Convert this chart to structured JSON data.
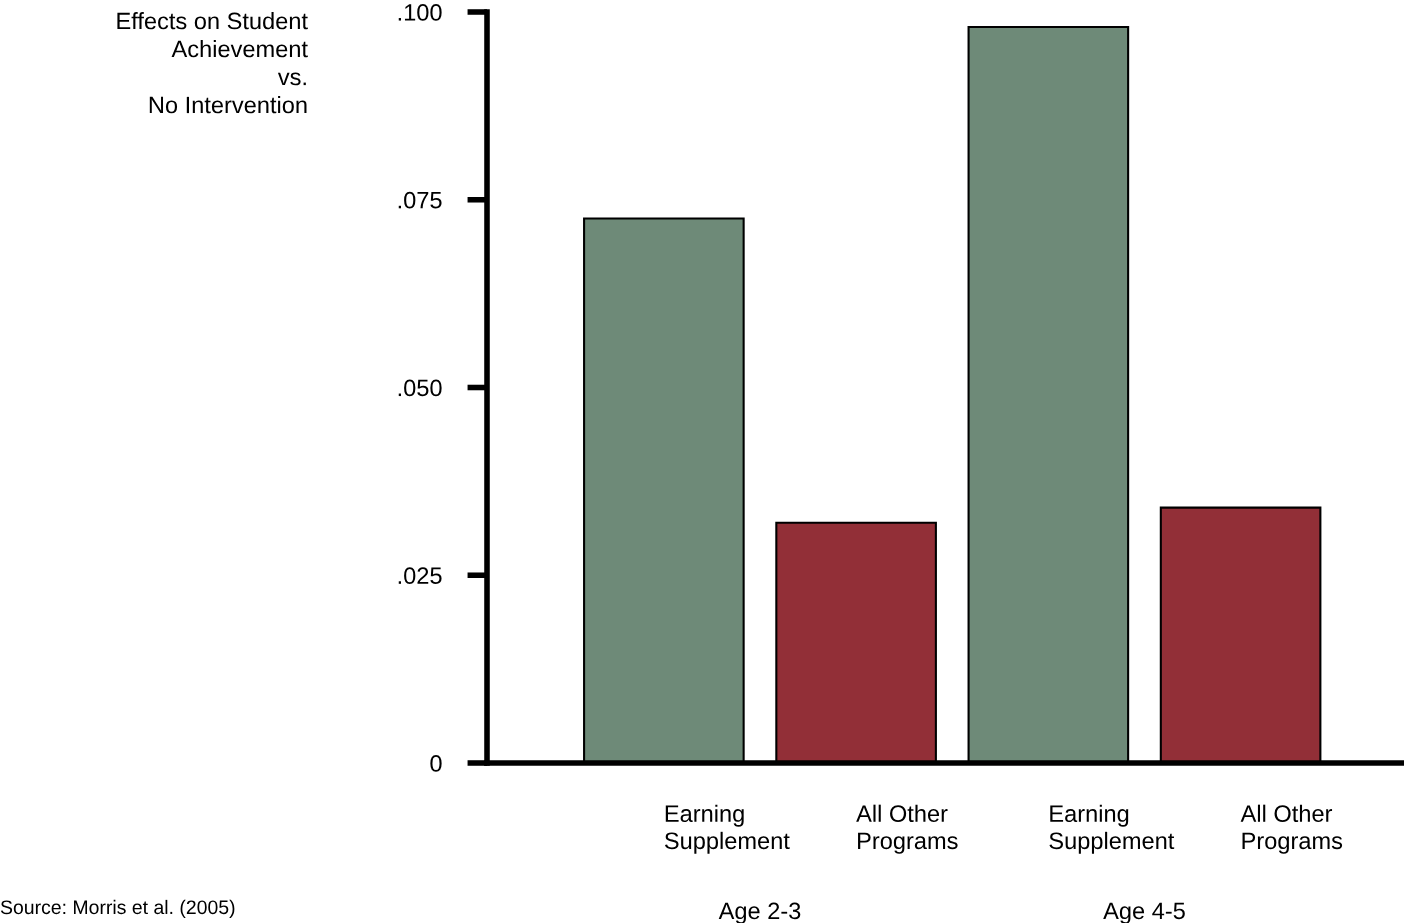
{
  "chart_data": {
    "type": "bar",
    "ylabel": "Effects on Student\nAchievement\nvs.\nNo Intervention",
    "categories": [
      "Earning\nSupplement",
      "All Other\nPrograms",
      "Earning\nSupplement",
      "All Other\nPrograms"
    ],
    "values": [
      0.0725,
      0.032,
      0.098,
      0.034
    ],
    "colors": [
      "#6e8a78",
      "#922f37",
      "#6e8a78",
      "#922f37"
    ],
    "ylim": [
      0,
      0.1
    ],
    "yticks": [
      {
        "value": 0,
        "label": "0"
      },
      {
        "value": 0.025,
        "label": ".025"
      },
      {
        "value": 0.05,
        "label": ".050"
      },
      {
        "value": 0.075,
        "label": ".075"
      },
      {
        "value": 0.1,
        "label": ".100"
      }
    ],
    "grid": false,
    "legend": false,
    "annotations": [
      "Age 2-3",
      "Age 4-5",
      "Source: Morris et al. (2005)"
    ]
  }
}
